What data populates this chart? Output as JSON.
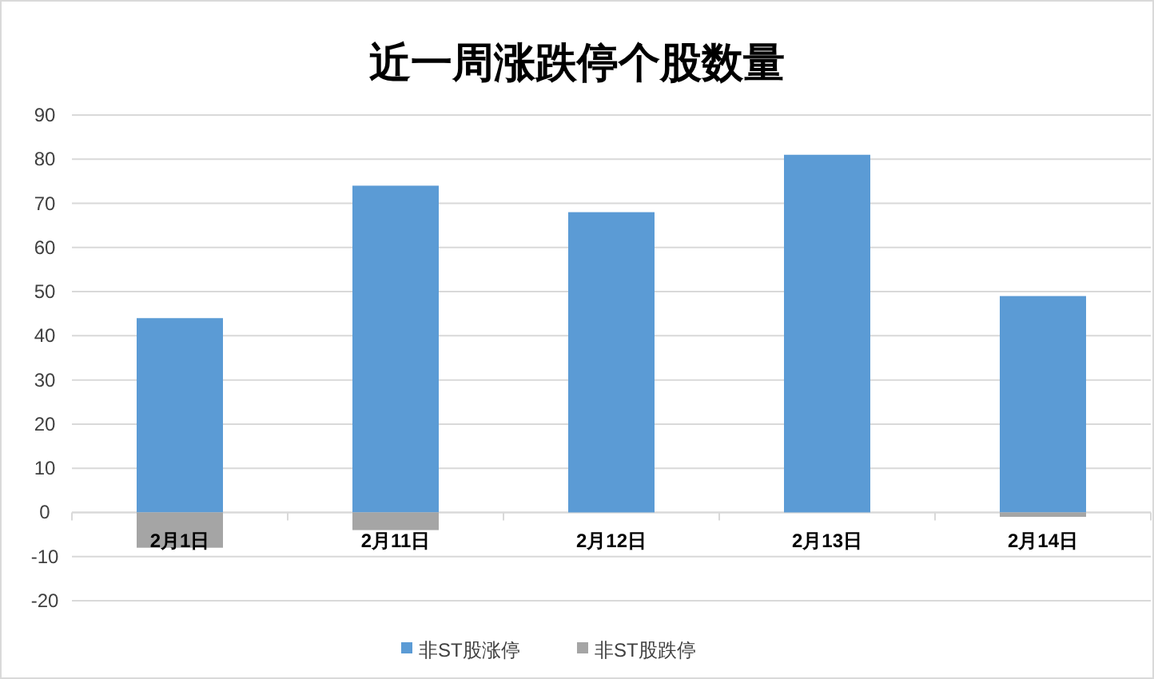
{
  "chart_data": {
    "type": "bar",
    "title": "近一周涨跌停个股数量",
    "categories": [
      "2月1日",
      "2月11日",
      "2月12日",
      "2月13日",
      "2月14日"
    ],
    "series": [
      {
        "name": "非ST股涨停",
        "color": "#5b9bd5",
        "values": [
          44,
          74,
          68,
          81,
          49
        ]
      },
      {
        "name": "非ST股跌停",
        "color": "#a5a5a5",
        "values": [
          -8,
          -4,
          0,
          0,
          -1
        ]
      }
    ],
    "ylim": [
      -20,
      90
    ],
    "yticks": [
      -20,
      -10,
      0,
      10,
      20,
      30,
      40,
      50,
      60,
      70,
      80,
      90
    ],
    "grid": "y",
    "legend": "bottom",
    "stacked": true
  }
}
